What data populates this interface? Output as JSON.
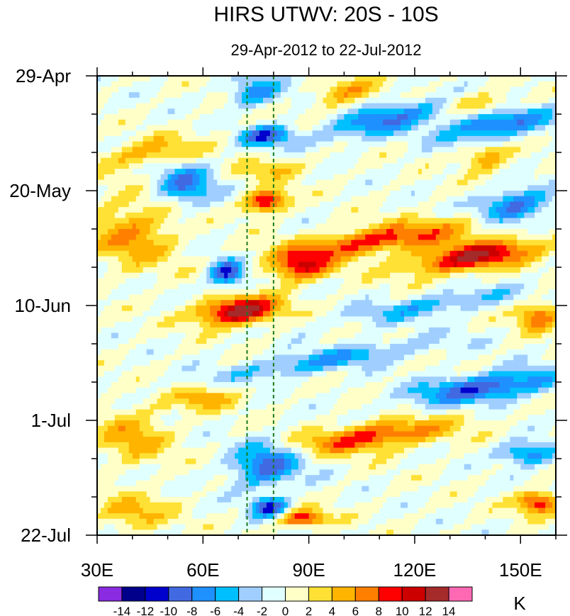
{
  "chart_data": {
    "type": "heatmap",
    "title": "HIRS UTWV: 20S - 10S",
    "subtitle": "29-Apr-2012 to 22-Jul-2012",
    "xlabel": "",
    "ylabel": "",
    "units": "K",
    "x_range": [
      30,
      160
    ],
    "x_ticks": [
      {
        "value": 30,
        "label": "30E"
      },
      {
        "value": 60,
        "label": "60E"
      },
      {
        "value": 90,
        "label": "90E"
      },
      {
        "value": 120,
        "label": "120E"
      },
      {
        "value": 150,
        "label": "150E"
      }
    ],
    "y_range_days": [
      0,
      84
    ],
    "y_ticks": [
      {
        "value": 0,
        "label": "29-Apr"
      },
      {
        "value": 21,
        "label": "20-May"
      },
      {
        "value": 42,
        "label": "10-Jun"
      },
      {
        "value": 63,
        "label": "1-Jul"
      },
      {
        "value": 84,
        "label": "22-Jul"
      }
    ],
    "reference_lines_lon": [
      72.5,
      80
    ],
    "colorbar": {
      "colors": [
        "#8a2be2",
        "#00008b",
        "#0000cd",
        "#4169e1",
        "#1e90ff",
        "#00bfff",
        "#a0cfff",
        "#e0ffff",
        "#ffffc8",
        "#ffe135",
        "#ffb400",
        "#ff7f00",
        "#ff0000",
        "#cd0000",
        "#a52a2a",
        "#ff69b4"
      ],
      "labels": [
        "-14",
        "-12",
        "-10",
        "-8",
        "-6",
        "-4",
        "-2",
        "0",
        "2",
        "4",
        "6",
        "8",
        "10",
        "12",
        "14"
      ]
    },
    "features": [
      {
        "lon": 75,
        "day": 3,
        "amp": -7,
        "slope": 0.05,
        "wlon": 7,
        "wday": 2.5
      },
      {
        "lon": 112,
        "day": 8,
        "amp": -8,
        "slope": 0.15,
        "wlon": 18,
        "wday": 2.5
      },
      {
        "lon": 143,
        "day": 9,
        "amp": -9,
        "slope": 0.1,
        "wlon": 15,
        "wday": 2.5
      },
      {
        "lon": 78,
        "day": 11,
        "amp": -10,
        "slope": 0.05,
        "wlon": 7,
        "wday": 1.8
      },
      {
        "lon": 100,
        "day": 3,
        "amp": 6,
        "slope": 0.2,
        "wlon": 8,
        "wday": 2
      },
      {
        "lon": 138,
        "day": 5,
        "amp": 5,
        "slope": 0,
        "wlon": 10,
        "wday": 2
      },
      {
        "lon": 45,
        "day": 14,
        "amp": 5,
        "slope": 0.1,
        "wlon": 15,
        "wday": 2.5
      },
      {
        "lon": 140,
        "day": 15,
        "amp": 6,
        "slope": 0.05,
        "wlon": 6,
        "wday": 2.5
      },
      {
        "lon": 80,
        "day": 17,
        "amp": 4,
        "slope": 0.1,
        "wlon": 10,
        "wday": 2
      },
      {
        "lon": 55,
        "day": 20,
        "amp": -8,
        "slope": 0,
        "wlon": 8,
        "wday": 3.5
      },
      {
        "lon": 78,
        "day": 23,
        "amp": 11,
        "slope": 0.05,
        "wlon": 6,
        "wday": 2
      },
      {
        "lon": 148,
        "day": 24,
        "amp": -9,
        "slope": 0.05,
        "wlon": 10,
        "wday": 3
      },
      {
        "lon": 40,
        "day": 29,
        "amp": 6,
        "slope": 0,
        "wlon": 12,
        "wday": 6
      },
      {
        "lon": 67,
        "day": 36,
        "amp": -11,
        "slope": 0,
        "wlon": 5,
        "wday": 2.5
      },
      {
        "lon": 110,
        "day": 30,
        "amp": 9,
        "slope": 0.09,
        "wlon": 28,
        "wday": 2.5
      },
      {
        "lon": 137,
        "day": 33,
        "amp": 12,
        "slope": 0.09,
        "wlon": 18,
        "wday": 2.5
      },
      {
        "lon": 88,
        "day": 35,
        "amp": 10,
        "slope": 0.05,
        "wlon": 8,
        "wday": 2.5
      },
      {
        "lon": 70,
        "day": 43,
        "amp": 14,
        "slope": 0.05,
        "wlon": 11,
        "wday": 2.5
      },
      {
        "lon": 125,
        "day": 42,
        "amp": -5,
        "slope": 0.1,
        "wlon": 25,
        "wday": 2
      },
      {
        "lon": 155,
        "day": 44,
        "amp": 8,
        "slope": 0,
        "wlon": 6,
        "wday": 2.5
      },
      {
        "lon": 95,
        "day": 52,
        "amp": -6,
        "slope": 0.1,
        "wlon": 30,
        "wday": 2
      },
      {
        "lon": 140,
        "day": 57,
        "amp": -10,
        "slope": 0.08,
        "wlon": 20,
        "wday": 2.5
      },
      {
        "lon": 60,
        "day": 59,
        "amp": 5,
        "slope": 0.05,
        "wlon": 10,
        "wday": 2.2
      },
      {
        "lon": 40,
        "day": 66,
        "amp": 5,
        "slope": 0,
        "wlon": 10,
        "wday": 5
      },
      {
        "lon": 108,
        "day": 66,
        "amp": 9,
        "slope": 0.08,
        "wlon": 22,
        "wday": 2.5
      },
      {
        "lon": 78,
        "day": 71,
        "amp": -9,
        "slope": 0.05,
        "wlon": 10,
        "wday": 4
      },
      {
        "lon": 152,
        "day": 69,
        "amp": -8,
        "slope": 0,
        "wlon": 8,
        "wday": 2
      },
      {
        "lon": 79,
        "day": 79,
        "amp": -10,
        "slope": 0,
        "wlon": 5,
        "wday": 2
      },
      {
        "lon": 88,
        "day": 81,
        "amp": 10,
        "slope": 0,
        "wlon": 7,
        "wday": 1.5
      },
      {
        "lon": 155,
        "day": 78,
        "amp": 10,
        "slope": 0,
        "wlon": 6,
        "wday": 2
      },
      {
        "lon": 40,
        "day": 80,
        "amp": 5,
        "slope": 0,
        "wlon": 10,
        "wday": 3
      }
    ]
  }
}
